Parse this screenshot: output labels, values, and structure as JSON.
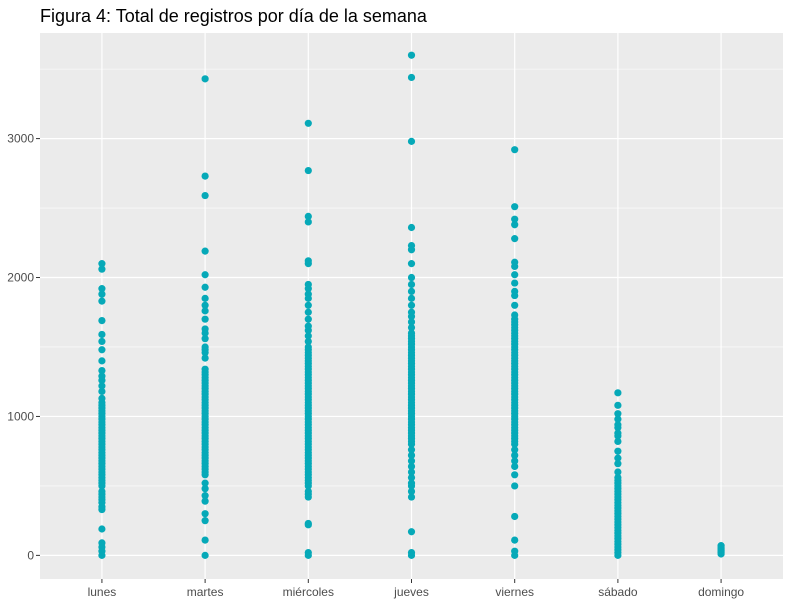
{
  "chart_data": {
    "type": "scatter",
    "title": "Figura 4: Total de registros por día de la semana",
    "xlabel": "",
    "ylabel": "",
    "categories": [
      "lunes",
      "martes",
      "miércoles",
      "jueves",
      "viernes",
      "sábado",
      "domingo"
    ],
    "yticks": [
      0,
      1000,
      2000,
      3000
    ],
    "ylim": [
      -170,
      3760
    ],
    "grid": true,
    "legend": "none",
    "colors": {
      "point": "#06A9B8",
      "panel": "#EBEBEB",
      "grid": "#FFFFFF",
      "tick_label": "#4D4D4D"
    },
    "points": [
      {
        "x": "lunes",
        "values": [
          0,
          30,
          60,
          90,
          190,
          330,
          350,
          380,
          400,
          420,
          440,
          460,
          500,
          520,
          540,
          560,
          580,
          600,
          620,
          640,
          660,
          680,
          700,
          720,
          740,
          760,
          780,
          800,
          820,
          840,
          860,
          880,
          900,
          920,
          940,
          960,
          980,
          1000,
          1020,
          1040,
          1060,
          1080,
          1100,
          1130,
          1180,
          1220,
          1260,
          1290,
          1330,
          1400,
          1480,
          1540,
          1590,
          1690,
          1830,
          1880,
          1920,
          2060,
          2100
        ]
      },
      {
        "x": "martes",
        "values": [
          0,
          110,
          250,
          300,
          390,
          430,
          480,
          520,
          580,
          600,
          620,
          640,
          660,
          680,
          700,
          720,
          740,
          760,
          780,
          800,
          820,
          840,
          860,
          880,
          900,
          920,
          940,
          960,
          980,
          1000,
          1020,
          1040,
          1060,
          1080,
          1100,
          1120,
          1140,
          1160,
          1180,
          1200,
          1220,
          1240,
          1260,
          1280,
          1300,
          1320,
          1340,
          1420,
          1460,
          1480,
          1500,
          1560,
          1600,
          1630,
          1700,
          1760,
          1800,
          1850,
          1930,
          2020,
          2190,
          2590,
          2730,
          3430
        ]
      },
      {
        "x": "miércoles",
        "values": [
          0,
          20,
          220,
          230,
          420,
          440,
          460,
          500,
          520,
          540,
          560,
          580,
          600,
          620,
          640,
          660,
          680,
          700,
          720,
          740,
          760,
          780,
          800,
          820,
          840,
          860,
          880,
          900,
          920,
          940,
          960,
          980,
          1000,
          1020,
          1040,
          1060,
          1080,
          1100,
          1120,
          1140,
          1160,
          1180,
          1200,
          1220,
          1240,
          1260,
          1280,
          1300,
          1320,
          1340,
          1360,
          1380,
          1400,
          1420,
          1440,
          1460,
          1480,
          1500,
          1540,
          1580,
          1620,
          1650,
          1700,
          1750,
          1800,
          1850,
          1880,
          1920,
          1950,
          2100,
          2120,
          2400,
          2440,
          2770,
          3110
        ]
      },
      {
        "x": "jueves",
        "values": [
          0,
          20,
          170,
          420,
          460,
          500,
          520,
          560,
          600,
          640,
          680,
          720,
          760,
          800,
          820,
          840,
          860,
          880,
          900,
          920,
          940,
          960,
          980,
          1000,
          1020,
          1040,
          1060,
          1080,
          1100,
          1120,
          1140,
          1160,
          1180,
          1200,
          1220,
          1240,
          1260,
          1280,
          1300,
          1320,
          1340,
          1360,
          1380,
          1400,
          1420,
          1440,
          1460,
          1480,
          1500,
          1520,
          1540,
          1560,
          1580,
          1600,
          1640,
          1680,
          1720,
          1750,
          1800,
          1850,
          1900,
          1950,
          2000,
          2100,
          2200,
          2230,
          2360,
          2980,
          3440,
          3600
        ]
      },
      {
        "x": "viernes",
        "values": [
          0,
          30,
          110,
          280,
          500,
          580,
          640,
          680,
          720,
          760,
          800,
          820,
          840,
          860,
          880,
          900,
          920,
          940,
          960,
          980,
          1000,
          1020,
          1040,
          1060,
          1080,
          1100,
          1120,
          1140,
          1160,
          1180,
          1200,
          1220,
          1240,
          1260,
          1280,
          1300,
          1320,
          1340,
          1360,
          1380,
          1400,
          1420,
          1440,
          1460,
          1480,
          1500,
          1520,
          1540,
          1560,
          1580,
          1600,
          1620,
          1640,
          1660,
          1680,
          1700,
          1730,
          1800,
          1870,
          1900,
          1960,
          2020,
          2080,
          2110,
          2280,
          2380,
          2420,
          2510,
          2920
        ]
      },
      {
        "x": "sábado",
        "values": [
          0,
          20,
          40,
          60,
          80,
          100,
          120,
          140,
          160,
          180,
          200,
          220,
          240,
          260,
          280,
          300,
          320,
          340,
          360,
          380,
          400,
          420,
          440,
          460,
          480,
          500,
          520,
          540,
          560,
          600,
          660,
          700,
          750,
          820,
          860,
          880,
          920,
          940,
          980,
          1020,
          1080,
          1170
        ]
      },
      {
        "x": "domingo",
        "values": [
          10,
          20,
          30,
          40,
          50,
          60,
          70
        ]
      }
    ]
  }
}
